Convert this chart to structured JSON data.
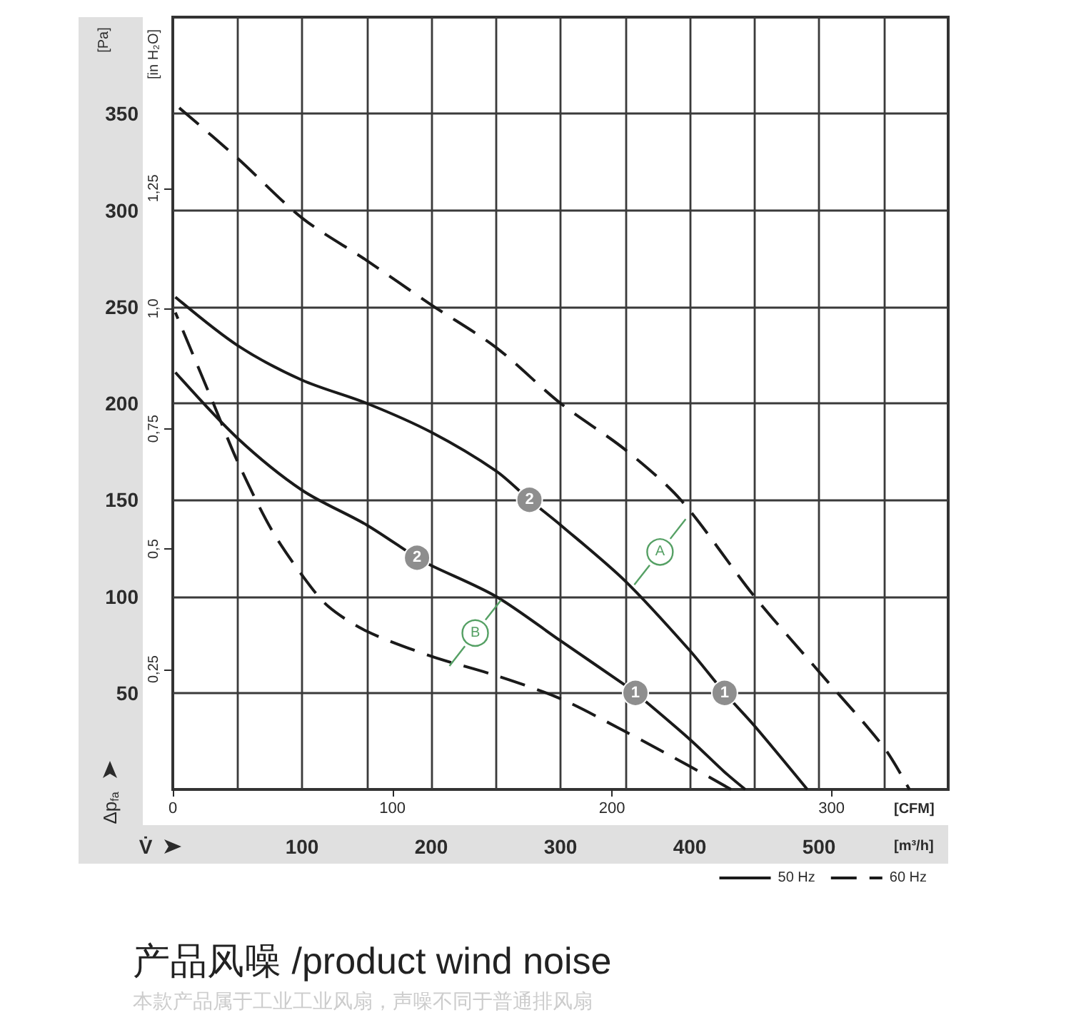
{
  "chart_data": {
    "type": "line",
    "title": "产品风噪 /product wind noise",
    "subtitle": "本款产品属于工业工业风扇，声噪不同于普通排风扇",
    "xlabel": "[m³/h]",
    "ylabel": "[Pa]",
    "x2label": "[CFM]",
    "y2label": "[in H₂O]",
    "xlim": [
      0,
      600
    ],
    "xticks": [
      {
        "value": 50,
        "label": null
      },
      100,
      {
        "value": 150,
        "label": null
      },
      200,
      {
        "value": 250,
        "label": null
      },
      300,
      {
        "value": 350,
        "label": null
      },
      400,
      {
        "value": 450,
        "label": null
      },
      500,
      {
        "value": 550,
        "label": null
      }
    ],
    "ylim": [
      0,
      400
    ],
    "yticks": [
      50,
      100,
      150,
      200,
      250,
      300,
      350
    ],
    "x2lim": [
      0,
      353.15
    ],
    "x2ticks": [
      0,
      100,
      200,
      300
    ],
    "y2lim": [
      0,
      1.606
    ],
    "y2ticks": [
      {
        "value": 0.25,
        "label": "0,25"
      },
      {
        "value": 0.5,
        "label": "0,5"
      },
      {
        "value": 0.75,
        "label": "0,75"
      },
      {
        "value": 1,
        "label": "1,0"
      },
      {
        "value": 1.25,
        "label": "1,25"
      }
    ],
    "grid": true,
    "legend": "bottom right",
    "marker": "none",
    "series": [
      {
        "name": "50 Hz",
        "color": "#1a1a1a",
        "line_style": "solid",
        "x": [
          2,
          50,
          100,
          150,
          200,
          250,
          276,
          300,
          350,
          400,
          427,
          450,
          491,
          null,
          443,
          427,
          400,
          358,
          350,
          300,
          250,
          200,
          189,
          150,
          100,
          50,
          2
        ],
        "values": [
          255,
          230,
          212,
          200,
          185,
          165,
          150,
          137,
          108,
          72,
          50,
          33,
          0,
          null,
          0,
          9,
          26,
          50,
          54,
          77,
          100,
          116,
          120,
          137,
          155,
          182,
          216
        ]
      },
      {
        "name": "60 Hz",
        "color": "#1a1a1a",
        "line_style": "dashed",
        "x": [
          5,
          50,
          100,
          150,
          200,
          250,
          300,
          350,
          393,
          450,
          500,
          550,
          570,
          null,
          432,
          400,
          350,
          300,
          250,
          200,
          150,
          120,
          100,
          76,
          50,
          32,
          2
        ],
        "values": [
          353,
          327,
          296,
          274,
          251,
          229,
          200,
          176,
          150,
          100,
          61,
          22,
          0,
          null,
          0,
          12,
          30,
          47,
          59,
          69,
          82,
          95,
          111,
          135,
          170,
          199,
          247
        ]
      }
    ],
    "annotations": [
      "Δp$_{fa}$",
      "V̇",
      {
        "text": "1",
        "x": 358,
        "y": 50
      },
      {
        "text": "1",
        "x": 427,
        "y": 50
      },
      {
        "text": "2",
        "x": 189,
        "y": 120
      },
      {
        "text": "2",
        "x": 276,
        "y": 150
      },
      {
        "text": "A",
        "x": 377,
        "y": 123
      },
      {
        "text": "B",
        "x": 234,
        "y": 81
      }
    ]
  }
}
